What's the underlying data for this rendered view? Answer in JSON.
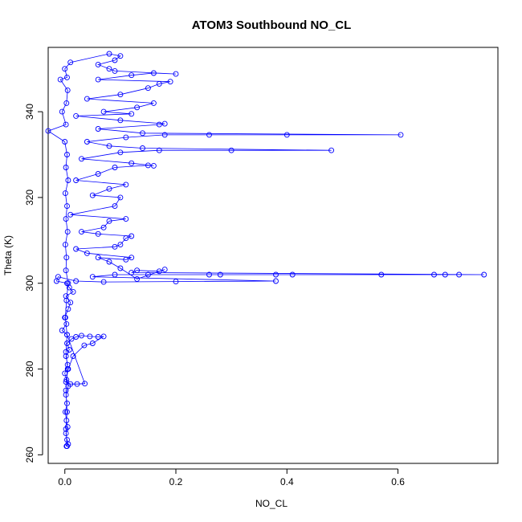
{
  "chart_data": {
    "type": "scatter",
    "title": "ATOM3 Southbound NO_CL",
    "xlabel": "NO_CL",
    "ylabel": "Theta (K)",
    "xlim": [
      -0.03,
      0.78
    ],
    "ylim": [
      258,
      355
    ],
    "x_ticks": [
      0.0,
      0.2,
      0.4,
      0.6
    ],
    "x_tick_labels": [
      "0.0",
      "0.2",
      "0.4",
      "0.6"
    ],
    "y_ticks": [
      260,
      280,
      300,
      320,
      340
    ],
    "y_tick_labels": [
      "260",
      "280",
      "300",
      "320",
      "340"
    ],
    "grid": false,
    "series": [
      {
        "color": "#0000ff",
        "marker": "open-circle",
        "connected": true,
        "points": [
          [
            0.003,
            262.0
          ],
          [
            0.006,
            262.5
          ],
          [
            0.004,
            263.5
          ],
          [
            0.002,
            265.0
          ],
          [
            0.005,
            266.5
          ],
          [
            0.003,
            268.0
          ],
          [
            0.001,
            270.0
          ],
          [
            0.004,
            272.0
          ],
          [
            0.002,
            274.0
          ],
          [
            0.006,
            276.0
          ],
          [
            0.003,
            277.5
          ],
          [
            0.0,
            279.0
          ],
          [
            0.005,
            281.0
          ],
          [
            0.002,
            283.0
          ],
          [
            0.008,
            284.5
          ],
          [
            0.004,
            286.0
          ],
          [
            0.012,
            287.0
          ],
          [
            0.02,
            287.5
          ],
          [
            0.03,
            287.8
          ],
          [
            0.045,
            287.6
          ],
          [
            0.06,
            287.5
          ],
          [
            0.07,
            287.6
          ],
          [
            0.05,
            286.0
          ],
          [
            0.035,
            285.5
          ],
          [
            0.015,
            283.0
          ],
          [
            0.006,
            280.0
          ],
          [
            0.002,
            277.0
          ],
          [
            0.01,
            276.5
          ],
          [
            0.022,
            276.5
          ],
          [
            0.036,
            276.6
          ],
          [
            0.004,
            288.0
          ],
          [
            -0.005,
            289.0
          ],
          [
            0.003,
            290.5
          ],
          [
            0.0,
            292.0
          ],
          [
            0.006,
            294.0
          ],
          [
            0.01,
            295.5
          ],
          [
            0.002,
            297.0
          ],
          [
            0.015,
            298.0
          ],
          [
            0.008,
            299.0
          ],
          [
            0.004,
            300.0
          ],
          [
            -0.015,
            300.5
          ],
          [
            -0.012,
            301.5
          ],
          [
            0.02,
            300.5
          ],
          [
            0.07,
            300.3
          ],
          [
            0.2,
            300.4
          ],
          [
            0.38,
            300.5
          ],
          [
            0.05,
            301.5
          ],
          [
            0.09,
            302.0
          ],
          [
            0.15,
            302.0
          ],
          [
            0.26,
            302.0
          ],
          [
            0.28,
            302.0
          ],
          [
            0.38,
            302.0
          ],
          [
            0.41,
            302.0
          ],
          [
            0.57,
            302.0
          ],
          [
            0.665,
            302.0
          ],
          [
            0.685,
            302.0
          ],
          [
            0.71,
            302.0
          ],
          [
            0.755,
            302.0
          ],
          [
            0.12,
            302.5
          ],
          [
            0.13,
            303.0
          ],
          [
            0.17,
            302.8
          ],
          [
            0.18,
            303.2
          ],
          [
            0.13,
            301.0
          ],
          [
            0.1,
            303.5
          ],
          [
            0.08,
            305.0
          ],
          [
            0.06,
            306.0
          ],
          [
            0.11,
            305.5
          ],
          [
            0.12,
            306.0
          ],
          [
            0.04,
            307.0
          ],
          [
            0.02,
            308.0
          ],
          [
            0.09,
            308.5
          ],
          [
            0.1,
            309.0
          ],
          [
            0.11,
            310.5
          ],
          [
            0.12,
            311.0
          ],
          [
            0.06,
            311.5
          ],
          [
            0.03,
            312.0
          ],
          [
            0.07,
            313.0
          ],
          [
            0.08,
            314.5
          ],
          [
            0.11,
            315.0
          ],
          [
            0.01,
            316.0
          ],
          [
            0.09,
            318.0
          ],
          [
            0.1,
            320.0
          ],
          [
            0.05,
            320.5
          ],
          [
            0.08,
            322.0
          ],
          [
            0.11,
            323.0
          ],
          [
            0.02,
            324.0
          ],
          [
            0.06,
            325.5
          ],
          [
            0.09,
            327.0
          ],
          [
            0.15,
            327.5
          ],
          [
            0.16,
            327.4
          ],
          [
            0.12,
            328.0
          ],
          [
            0.03,
            329.0
          ],
          [
            0.1,
            330.5
          ],
          [
            0.17,
            331.0
          ],
          [
            0.3,
            331.0
          ],
          [
            0.48,
            331.0
          ],
          [
            0.14,
            331.5
          ],
          [
            0.08,
            332.0
          ],
          [
            0.04,
            333.0
          ],
          [
            0.11,
            334.0
          ],
          [
            0.18,
            334.6
          ],
          [
            0.26,
            334.6
          ],
          [
            0.4,
            334.6
          ],
          [
            0.605,
            334.6
          ],
          [
            0.14,
            335.0
          ],
          [
            0.06,
            336.0
          ],
          [
            0.17,
            337.0
          ],
          [
            0.18,
            337.2
          ],
          [
            0.1,
            338.0
          ],
          [
            0.02,
            339.0
          ],
          [
            0.12,
            339.5
          ],
          [
            0.07,
            340.0
          ],
          [
            0.13,
            341.0
          ],
          [
            0.16,
            342.0
          ],
          [
            0.04,
            343.0
          ],
          [
            0.1,
            344.0
          ],
          [
            0.15,
            345.5
          ],
          [
            0.17,
            346.5
          ],
          [
            0.19,
            347.0
          ],
          [
            0.06,
            347.5
          ],
          [
            0.12,
            348.5
          ],
          [
            0.16,
            349.0
          ],
          [
            0.2,
            348.8
          ],
          [
            0.09,
            349.5
          ],
          [
            0.08,
            350.0
          ],
          [
            0.06,
            351.0
          ],
          [
            0.09,
            352.0
          ],
          [
            0.1,
            353.0
          ],
          [
            0.08,
            353.5
          ],
          [
            0.01,
            351.5
          ],
          [
            0.0,
            350.0
          ],
          [
            0.004,
            348.0
          ],
          [
            -0.008,
            347.5
          ],
          [
            0.005,
            345.0
          ],
          [
            0.003,
            342.0
          ],
          [
            -0.005,
            340.0
          ],
          [
            0.002,
            337.0
          ],
          [
            -0.03,
            335.5
          ],
          [
            0.0,
            333.0
          ],
          [
            0.004,
            330.0
          ],
          [
            0.002,
            327.0
          ],
          [
            0.006,
            324.0
          ],
          [
            0.001,
            321.0
          ],
          [
            0.004,
            318.0
          ],
          [
            0.002,
            315.0
          ],
          [
            0.005,
            312.0
          ],
          [
            0.001,
            309.0
          ],
          [
            0.003,
            306.0
          ],
          [
            0.002,
            303.0
          ],
          [
            0.006,
            300.0
          ],
          [
            0.003,
            296.0
          ],
          [
            0.001,
            292.0
          ],
          [
            0.004,
            288.0
          ],
          [
            0.002,
            284.0
          ],
          [
            0.005,
            280.0
          ],
          [
            0.002,
            275.0
          ],
          [
            0.004,
            270.0
          ],
          [
            0.002,
            266.0
          ],
          [
            0.004,
            262.0
          ]
        ]
      }
    ]
  }
}
